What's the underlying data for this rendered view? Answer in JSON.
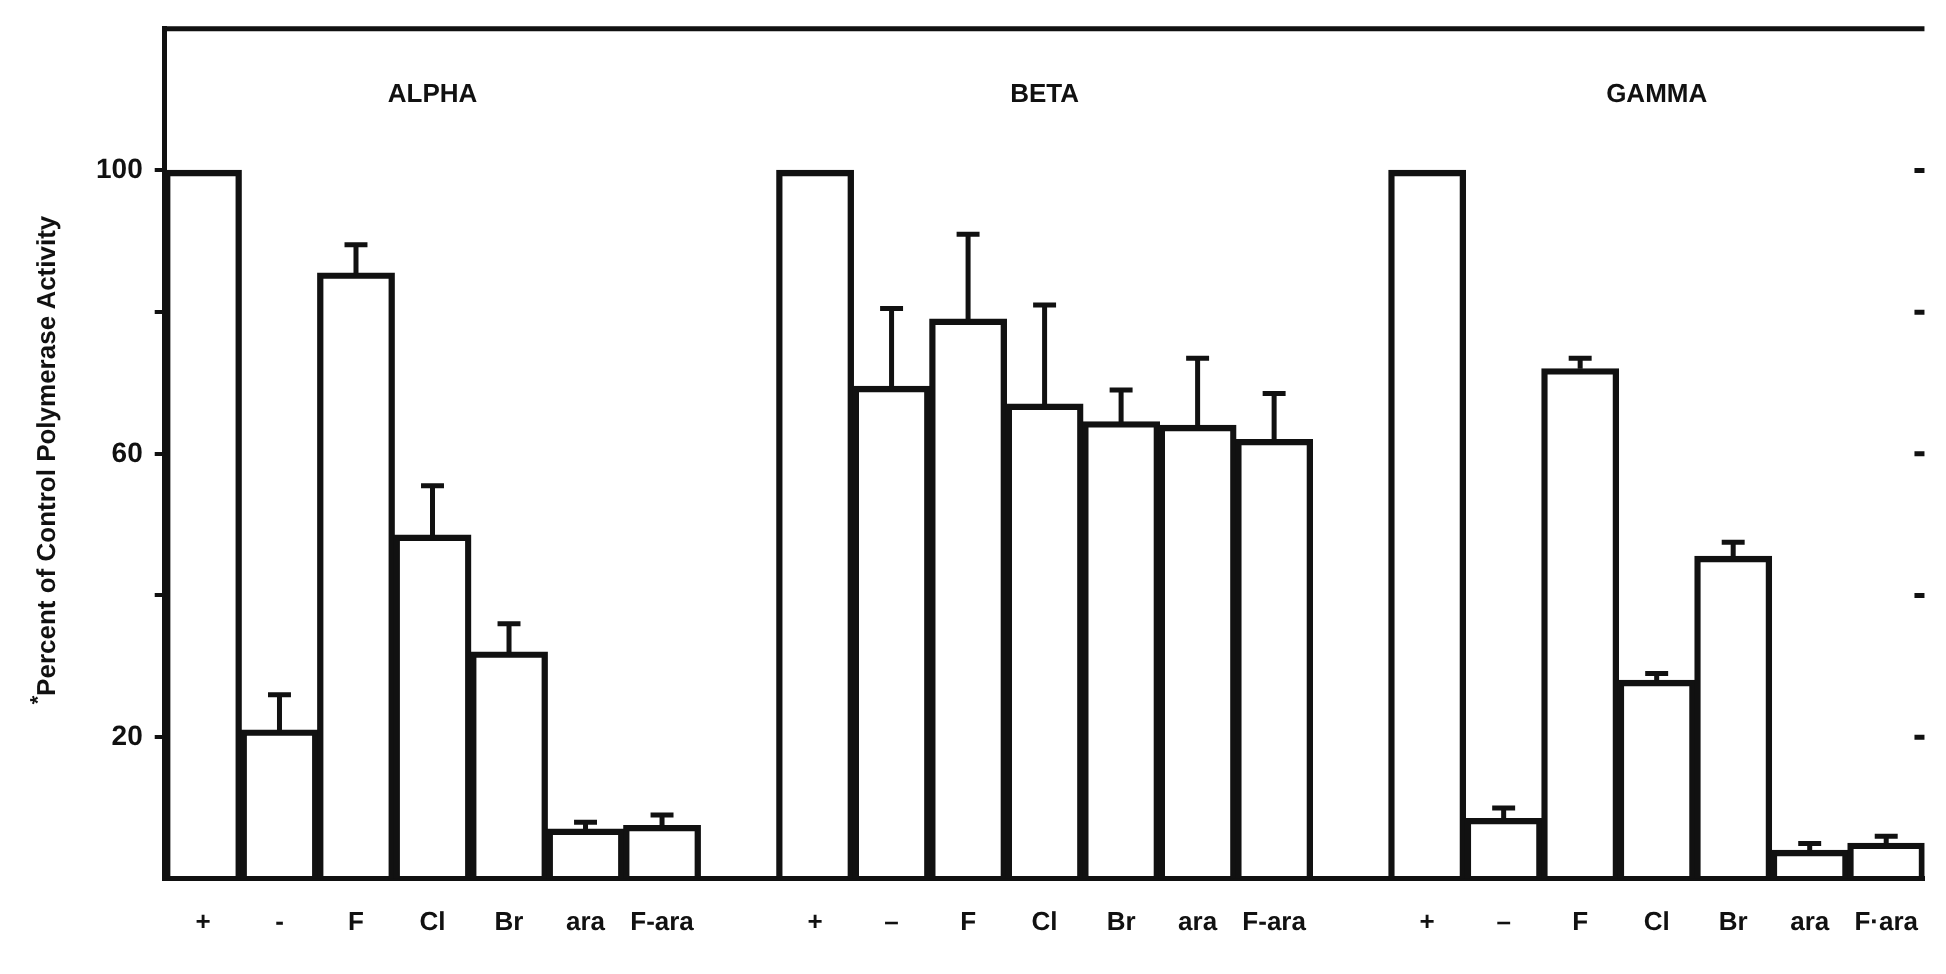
{
  "chart_data": {
    "type": "bar",
    "ylabel": "$^{*}$Percent of Control Polymerase Activity",
    "annotations": [
      "ALPHA",
      "BETA",
      "GAMMA"
    ],
    "categories": [
      "+",
      "-",
      "F",
      "Cl",
      "Br",
      "ara",
      "F-ara",
      null,
      "+",
      "–",
      "F",
      "Cl",
      "Br",
      "ara",
      "F-ara",
      null,
      "+",
      "–",
      "F",
      "Cl",
      "Br",
      "ara",
      "F·ara"
    ],
    "series": [
      {
        "color": "#111111",
        "values": [
          100,
          21,
          85.5,
          48.5,
          32,
          7,
          7.5,
          null,
          100,
          69.5,
          79,
          67,
          64.5,
          64,
          62,
          null,
          100,
          8.5,
          72,
          28,
          45.5,
          4,
          5
        ],
        "errors": [
          null,
          [
            21,
            26
          ],
          [
            85.5,
            89.5
          ],
          [
            48.5,
            55.5
          ],
          [
            32,
            36
          ],
          [
            7,
            8
          ],
          [
            7.5,
            9
          ],
          null,
          null,
          [
            69.5,
            80.5
          ],
          [
            79,
            91
          ],
          [
            67,
            81
          ],
          [
            64.5,
            69
          ],
          [
            64,
            73.5
          ],
          [
            62,
            68.5
          ],
          null,
          null,
          [
            8.5,
            10
          ],
          [
            72,
            73.5
          ],
          [
            28,
            29
          ],
          [
            45.5,
            47.5
          ],
          [
            4,
            5
          ],
          [
            5,
            6
          ]
        ]
      }
    ],
    "ylim": [
      0,
      120
    ],
    "yticks": [
      {
        "value": 20,
        "label": "20"
      },
      {
        "value": 40,
        "label": null
      },
      {
        "value": 60,
        "label": "60"
      },
      {
        "value": 80,
        "label": null
      },
      {
        "value": 100,
        "label": "100"
      }
    ],
    "grid": false,
    "legend": false
  }
}
